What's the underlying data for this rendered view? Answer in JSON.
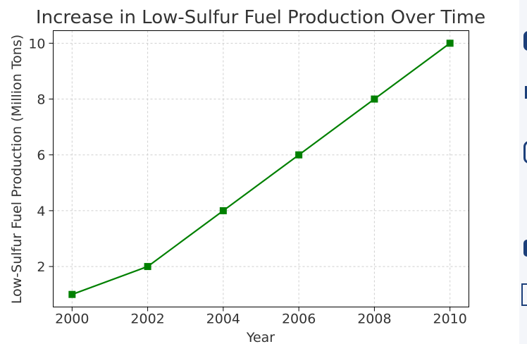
{
  "chart_data": {
    "type": "line",
    "title": "Increase in Low-Sulfur Fuel Production Over Time",
    "xlabel": "Year",
    "ylabel": "Low-Sulfur Fuel Production (Million Tons)",
    "x": [
      2000,
      2002,
      2004,
      2006,
      2008,
      2010
    ],
    "series": [
      {
        "values": [
          1,
          2,
          4,
          6,
          8,
          10
        ]
      }
    ],
    "xticks": [
      "2000",
      "2002",
      "2004",
      "2006",
      "2008",
      "2010"
    ],
    "yticks": [
      "2",
      "4",
      "6",
      "8",
      "10"
    ],
    "xlim": [
      1999.5,
      2010.5
    ],
    "ylim": [
      0.55,
      10.45
    ],
    "grid": true,
    "marker": "square",
    "color": "#008000"
  }
}
